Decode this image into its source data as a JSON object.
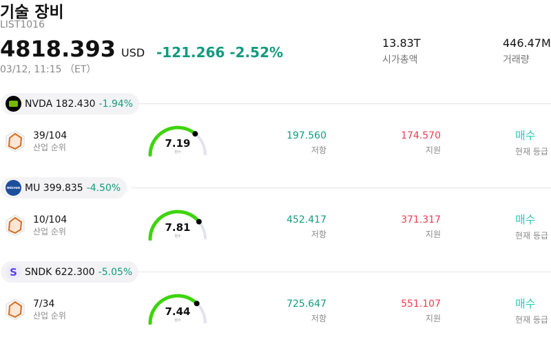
{
  "header": {
    "title": "기술 장비",
    "code": "LIST1016",
    "price": "4818.393",
    "currency": "USD",
    "change": "-121.266 -2.52%",
    "time": "03/12, 11:15 （ET）"
  },
  "stats": [
    {
      "value": "13.83T",
      "label": "시가총액"
    },
    {
      "value": "446.47M",
      "label": "거래량"
    }
  ],
  "colors": {
    "negative": "#129a7e",
    "support": "#f2384f",
    "rating": "#2ec9b7",
    "gauge": "#3ed40c"
  },
  "stocks": [
    {
      "ticker": "NVDA",
      "price": "182.430",
      "change": "-1.94%",
      "logo": "nvidia-logo",
      "rank": "39/104",
      "rank_label": "산업 순위",
      "score": "7.19",
      "score_value": 7.19,
      "score_label": "점수",
      "resistance": "197.560",
      "resistance_label": "저항",
      "support": "174.570",
      "support_label": "지원",
      "rating": "매수",
      "rating_label": "현재 등급"
    },
    {
      "ticker": "MU",
      "price": "399.835",
      "change": "-4.50%",
      "logo": "micron-logo",
      "rank": "10/104",
      "rank_label": "산업 순위",
      "score": "7.81",
      "score_value": 7.81,
      "score_label": "점수",
      "resistance": "452.417",
      "resistance_label": "저항",
      "support": "371.317",
      "support_label": "지원",
      "rating": "매수",
      "rating_label": "현재 등급"
    },
    {
      "ticker": "SNDK",
      "price": "622.300",
      "change": "-5.05%",
      "logo": "sandisk-logo",
      "logo_text": "S",
      "rank": "7/34",
      "rank_label": "산업 순위",
      "score": "7.44",
      "score_value": 7.44,
      "score_label": "점수",
      "resistance": "725.647",
      "resistance_label": "저항",
      "support": "551.107",
      "support_label": "지원",
      "rating": "매수",
      "rating_label": "현재 등급"
    }
  ]
}
